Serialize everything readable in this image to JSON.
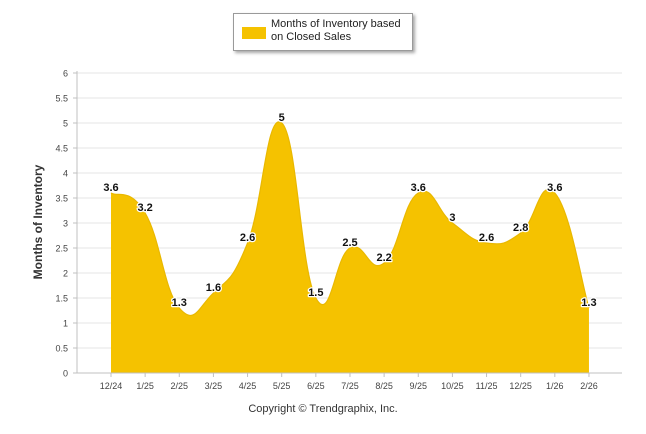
{
  "chart_data": {
    "type": "area",
    "title": "",
    "xlabel": "",
    "ylabel": "Months of Inventory",
    "ylim": [
      0,
      6
    ],
    "y_ticks": [
      "0",
      "0.5",
      "1",
      "1.5",
      "2",
      "2.5",
      "3",
      "3.5",
      "4",
      "4.5",
      "5",
      "5.5",
      "6"
    ],
    "categories": [
      "12/24",
      "1/25",
      "2/25",
      "3/25",
      "4/25",
      "5/25",
      "6/25",
      "7/25",
      "8/25",
      "9/25",
      "10/25",
      "11/25",
      "12/25",
      "1/26",
      "2/26"
    ],
    "series": [
      {
        "name": "Months of Inventory based on Closed Sales",
        "color": "#F5C200",
        "values": [
          3.6,
          3.2,
          1.3,
          1.6,
          2.6,
          5,
          1.5,
          2.5,
          2.2,
          3.6,
          3,
          2.6,
          2.8,
          3.6,
          1.3
        ],
        "labels": [
          "3.6",
          "3.2",
          "1.3",
          "1.6",
          "2.6",
          "5",
          "1.5",
          "2.5",
          "2.2",
          "3.6",
          "3",
          "2.6",
          "2.8",
          "3.6",
          "1.3"
        ]
      }
    ],
    "grid": true,
    "legend": "top-center"
  },
  "legend": {
    "line1": "Months of Inventory based",
    "line2": "on Closed Sales"
  },
  "footer": {
    "copyright": "Copyright © Trendgraphix, Inc."
  },
  "colors": {
    "fill": "#F5C200",
    "grid": "#e6e6e6",
    "axis": "#c0c0c0"
  }
}
